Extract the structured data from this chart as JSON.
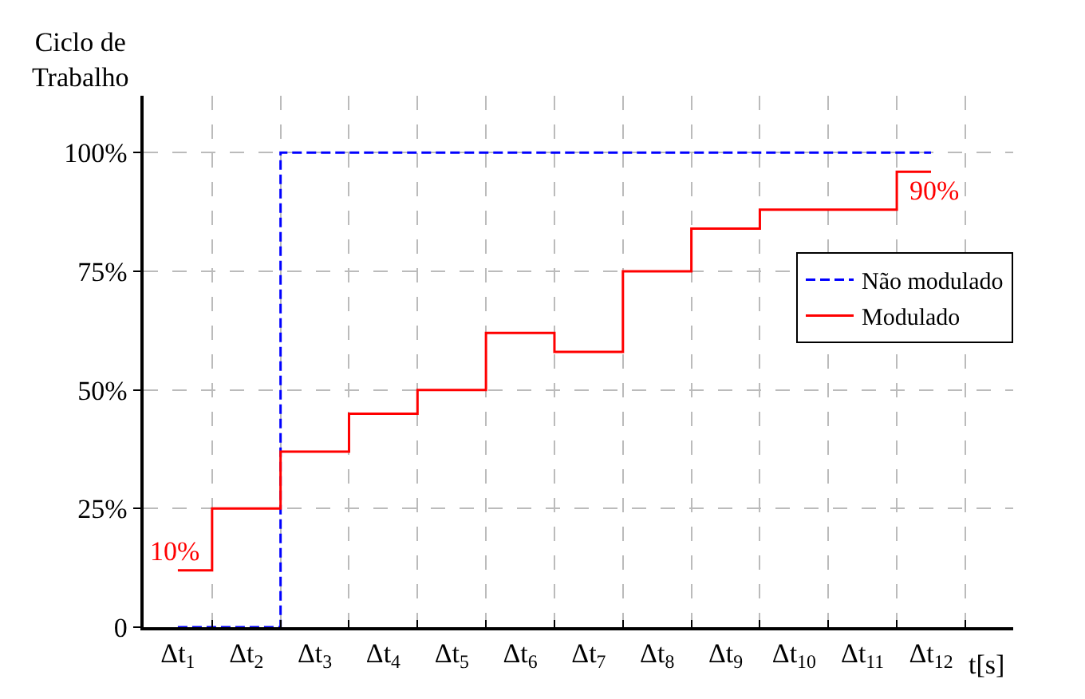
{
  "chart_data": {
    "type": "step",
    "xlabel": "t[s]",
    "ylabel": "Ciclo de Trabalho",
    "categories": [
      "Δt$_{1}$",
      "Δt$_{2}$",
      "Δt$_{3}$",
      "Δt$_{4}$",
      "Δt$_{5}$",
      "Δt$_{6}$",
      "Δt$_{7}$",
      "Δt$_{8}$",
      "Δt$_{9}$",
      "Δt$_{10}$",
      "Δt$_{11}$",
      "Δt$_{12}$"
    ],
    "series": [
      {
        "name": "Não modulado",
        "color": "#0000ff",
        "line_style": "dashed",
        "values": [
          0,
          0,
          100,
          100,
          100,
          100,
          100,
          100,
          100,
          100,
          100,
          100
        ]
      },
      {
        "name": "Modulado",
        "color": "#ff0000",
        "line_style": "solid",
        "values": [
          12,
          25,
          37,
          45,
          50,
          62,
          58,
          75,
          84,
          88,
          88,
          96
        ]
      }
    ],
    "annotations": [
      {
        "text": "10%",
        "x": "Δt$_{1}$",
        "y": 12
      },
      {
        "text": "90%",
        "x": "Δt$_{12}$",
        "y": 96
      }
    ],
    "ylim": [
      0,
      112
    ],
    "yticks": [
      {
        "value": 0,
        "label": "0"
      },
      {
        "value": 25,
        "label": "25%"
      },
      {
        "value": 50,
        "label": "50%"
      },
      {
        "value": 75,
        "label": "75%"
      },
      {
        "value": 100,
        "label": "100%"
      }
    ],
    "grid": true,
    "legend": "right"
  }
}
